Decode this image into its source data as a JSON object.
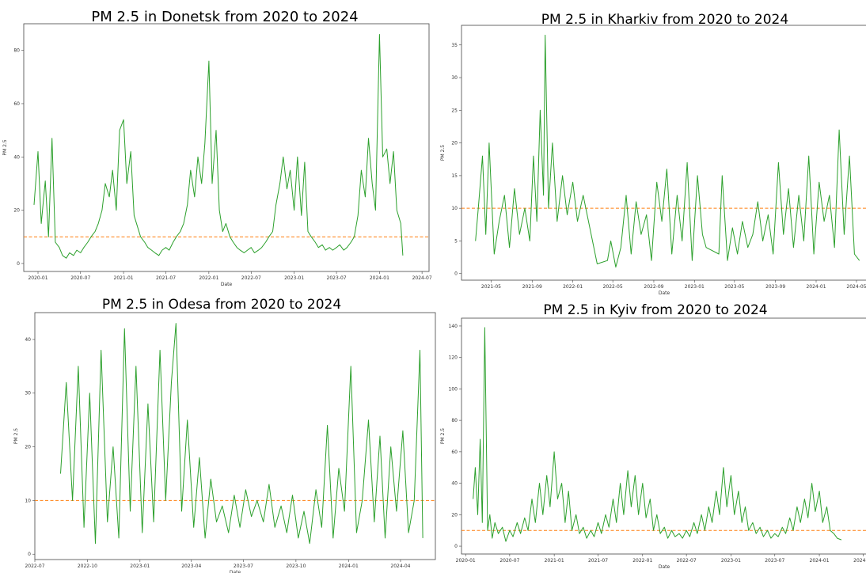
{
  "chart_data": [
    {
      "type": "line",
      "title": "PM 2.5 in Donetsk from 2020 to 2024",
      "xlabel": "Date",
      "ylabel": "PM 2.5",
      "threshold": 10,
      "xlim": [
        "2019-11-01",
        "2024-07-31"
      ],
      "ylim": [
        -3,
        90
      ],
      "x_ticks": [
        "2020-01",
        "2020-07",
        "2021-01",
        "2021-07",
        "2022-01",
        "2022-07",
        "2023-01",
        "2023-07",
        "2024-01",
        "2024-07"
      ],
      "y_ticks": [
        0,
        20,
        40,
        60,
        80
      ],
      "grid": false,
      "series": [
        {
          "color": "#2ca02c",
          "x": [
            "2019-12-15",
            "2020-01-01",
            "2020-01-15",
            "2020-02-01",
            "2020-02-15",
            "2020-03-01",
            "2020-03-15",
            "2020-04-01",
            "2020-04-15",
            "2020-05-01",
            "2020-05-15",
            "2020-06-01",
            "2020-06-15",
            "2020-07-01",
            "2020-07-15",
            "2020-08-01",
            "2020-08-15",
            "2020-09-01",
            "2020-09-15",
            "2020-10-01",
            "2020-10-15",
            "2020-11-01",
            "2020-11-15",
            "2020-12-01",
            "2020-12-15",
            "2021-01-01",
            "2021-01-15",
            "2021-02-01",
            "2021-02-15",
            "2021-03-01",
            "2021-03-15",
            "2021-04-01",
            "2021-04-15",
            "2021-05-01",
            "2021-05-15",
            "2021-06-01",
            "2021-06-15",
            "2021-07-01",
            "2021-07-15",
            "2021-08-01",
            "2021-08-15",
            "2021-09-01",
            "2021-09-15",
            "2021-10-01",
            "2021-10-15",
            "2021-11-01",
            "2021-11-15",
            "2021-12-01",
            "2021-12-15",
            "2022-01-01",
            "2022-01-15",
            "2022-02-01",
            "2022-02-15",
            "2022-03-01",
            "2022-03-15",
            "2022-04-01",
            "2022-04-15",
            "2022-05-01",
            "2022-05-15",
            "2022-06-01",
            "2022-06-15",
            "2022-07-01",
            "2022-07-15",
            "2022-08-01",
            "2022-08-15",
            "2022-09-01",
            "2022-09-15",
            "2022-10-01",
            "2022-10-15",
            "2022-11-01",
            "2022-11-15",
            "2022-12-01",
            "2022-12-15",
            "2023-01-01",
            "2023-01-15",
            "2023-02-01",
            "2023-02-15",
            "2023-03-01",
            "2023-03-15",
            "2023-04-01",
            "2023-04-15",
            "2023-05-01",
            "2023-05-15",
            "2023-06-01",
            "2023-06-15",
            "2023-07-01",
            "2023-07-15",
            "2023-08-01",
            "2023-08-15",
            "2023-09-01",
            "2023-09-15",
            "2023-10-01",
            "2023-10-15",
            "2023-11-01",
            "2023-11-15",
            "2023-12-01",
            "2023-12-15",
            "2024-01-01",
            "2024-01-15",
            "2024-02-01",
            "2024-02-15",
            "2024-03-01",
            "2024-03-15",
            "2024-04-01",
            "2024-04-10"
          ],
          "values": [
            22,
            42,
            15,
            31,
            10,
            47,
            8,
            6,
            3,
            2,
            4,
            3,
            5,
            4,
            6,
            8,
            10,
            12,
            15,
            20,
            30,
            25,
            35,
            20,
            50,
            54,
            30,
            42,
            18,
            14,
            10,
            8,
            6,
            5,
            4,
            3,
            5,
            6,
            5,
            8,
            10,
            12,
            15,
            22,
            35,
            25,
            40,
            30,
            45,
            76,
            30,
            50,
            20,
            12,
            15,
            10,
            8,
            6,
            5,
            4,
            5,
            6,
            4,
            5,
            6,
            8,
            10,
            12,
            22,
            30,
            40,
            28,
            35,
            20,
            40,
            18,
            38,
            12,
            10,
            8,
            6,
            7,
            5,
            6,
            5,
            6,
            7,
            5,
            6,
            8,
            10,
            18,
            35,
            25,
            47,
            30,
            20,
            86,
            40,
            43,
            30,
            42,
            20,
            15,
            3
          ]
        }
      ]
    },
    {
      "type": "line",
      "title": "PM 2.5 in Kharkiv from 2020 to 2024",
      "xlabel": "Date",
      "ylabel": "PM 2.5",
      "threshold": 10,
      "xlim": [
        "2021-02-01",
        "2024-06-01"
      ],
      "ylim": [
        -1,
        38
      ],
      "x_ticks": [
        "2021-05",
        "2021-09",
        "2022-01",
        "2022-05",
        "2022-09",
        "2023-01",
        "2023-05",
        "2023-09",
        "2024-01",
        "2024-05"
      ],
      "y_ticks": [
        0,
        5,
        10,
        15,
        20,
        25,
        30,
        35
      ],
      "grid": false,
      "series": [
        {
          "color": "#2ca02c",
          "x": [
            "2021-03-15",
            "2021-03-25",
            "2021-04-05",
            "2021-04-15",
            "2021-04-25",
            "2021-05-10",
            "2021-05-25",
            "2021-06-10",
            "2021-06-25",
            "2021-07-10",
            "2021-07-25",
            "2021-08-10",
            "2021-08-25",
            "2021-09-05",
            "2021-09-15",
            "2021-09-25",
            "2021-10-05",
            "2021-10-10",
            "2021-10-20",
            "2021-11-01",
            "2021-11-15",
            "2021-12-01",
            "2021-12-15",
            "2022-01-01",
            "2022-01-15",
            "2022-02-01",
            "2022-03-15",
            "2022-04-15",
            "2022-04-25",
            "2022-05-10",
            "2022-05-25",
            "2022-06-10",
            "2022-06-25",
            "2022-07-10",
            "2022-07-25",
            "2022-08-10",
            "2022-08-25",
            "2022-09-10",
            "2022-09-25",
            "2022-10-10",
            "2022-10-25",
            "2022-11-10",
            "2022-11-25",
            "2022-12-10",
            "2022-12-25",
            "2023-01-10",
            "2023-01-25",
            "2023-02-05",
            "2023-03-15",
            "2023-03-25",
            "2023-04-10",
            "2023-04-25",
            "2023-05-10",
            "2023-05-25",
            "2023-06-10",
            "2023-06-25",
            "2023-07-10",
            "2023-07-25",
            "2023-08-10",
            "2023-08-25",
            "2023-09-10",
            "2023-09-25",
            "2023-10-10",
            "2023-10-25",
            "2023-11-10",
            "2023-11-25",
            "2023-12-10",
            "2023-12-25",
            "2024-01-10",
            "2024-01-25",
            "2024-02-10",
            "2024-02-25",
            "2024-03-10",
            "2024-03-25",
            "2024-04-10",
            "2024-04-25",
            "2024-05-10"
          ],
          "values": [
            5,
            11,
            18,
            6,
            20,
            3,
            8,
            12,
            4,
            13,
            6,
            10,
            5,
            18,
            8,
            25,
            12,
            36.5,
            10,
            20,
            8,
            15,
            9,
            14,
            8,
            12,
            1.5,
            2,
            5,
            1,
            4,
            12,
            3,
            11,
            6,
            9,
            2,
            14,
            8,
            16,
            3,
            12,
            5,
            17,
            2,
            15,
            6,
            4,
            3,
            15,
            2,
            7,
            3,
            8,
            4,
            6,
            11,
            5,
            9,
            3,
            17,
            6,
            13,
            4,
            12,
            5,
            18,
            3,
            14,
            8,
            12,
            4,
            22,
            6,
            18,
            3,
            2
          ]
        }
      ]
    },
    {
      "type": "line",
      "title": "PM 2.5 in Odesa from 2020 to 2024",
      "xlabel": "Date",
      "ylabel": "PM 2.5",
      "threshold": 10,
      "xlim": [
        "2022-07-01",
        "2024-06-01"
      ],
      "ylim": [
        -1,
        45
      ],
      "x_ticks": [
        "2022-07",
        "2022-10",
        "2023-01",
        "2023-04",
        "2023-07",
        "2023-10",
        "2024-01",
        "2024-04"
      ],
      "y_ticks": [
        0,
        10,
        20,
        30,
        40
      ],
      "grid": false,
      "series": [
        {
          "color": "#2ca02c",
          "x": [
            "2022-08-15",
            "2022-08-25",
            "2022-09-05",
            "2022-09-15",
            "2022-09-25",
            "2022-10-05",
            "2022-10-15",
            "2022-10-25",
            "2022-11-05",
            "2022-11-15",
            "2022-11-25",
            "2022-12-05",
            "2022-12-15",
            "2022-12-25",
            "2023-01-05",
            "2023-01-15",
            "2023-01-25",
            "2023-02-05",
            "2023-02-15",
            "2023-02-25",
            "2023-03-05",
            "2023-03-15",
            "2023-03-25",
            "2023-04-05",
            "2023-04-15",
            "2023-04-25",
            "2023-05-05",
            "2023-05-15",
            "2023-05-25",
            "2023-06-05",
            "2023-06-15",
            "2023-06-25",
            "2023-07-05",
            "2023-07-15",
            "2023-07-25",
            "2023-08-05",
            "2023-08-15",
            "2023-08-25",
            "2023-09-05",
            "2023-09-15",
            "2023-09-25",
            "2023-10-05",
            "2023-10-15",
            "2023-10-25",
            "2023-11-05",
            "2023-11-15",
            "2023-11-25",
            "2023-12-05",
            "2023-12-15",
            "2023-12-25",
            "2024-01-05",
            "2024-01-15",
            "2024-01-25",
            "2024-02-05",
            "2024-02-15",
            "2024-02-25",
            "2024-03-05",
            "2024-03-15",
            "2024-03-25",
            "2024-04-05",
            "2024-04-15",
            "2024-04-25",
            "2024-05-05",
            "2024-05-10"
          ],
          "values": [
            15,
            32,
            10,
            35,
            5,
            30,
            2,
            38,
            6,
            20,
            3,
            42,
            8,
            35,
            4,
            28,
            6,
            38,
            10,
            32,
            43,
            8,
            25,
            5,
            18,
            3,
            14,
            6,
            9,
            4,
            11,
            5,
            12,
            7,
            10,
            6,
            13,
            5,
            9,
            4,
            11,
            3,
            8,
            2,
            12,
            5,
            24,
            3,
            16,
            8,
            35,
            4,
            10,
            25,
            6,
            22,
            3,
            20,
            8,
            23,
            4,
            10,
            38,
            3
          ]
        }
      ]
    },
    {
      "type": "line",
      "title": "PM 2.5 in Kyiv from 2020 to 2024",
      "xlabel": "Date",
      "ylabel": "PM 2.5",
      "threshold": 10,
      "xlim": [
        "2019-12-15",
        "2024-07-15"
      ],
      "ylim": [
        -5,
        145
      ],
      "x_ticks": [
        "2020-01",
        "2020-07",
        "2021-01",
        "2021-07",
        "2022-01",
        "2022-07",
        "2023-01",
        "2023-07",
        "2024-01",
        "2024-07"
      ],
      "y_ticks": [
        0,
        20,
        40,
        60,
        80,
        100,
        120,
        140
      ],
      "grid": false,
      "series": [
        {
          "color": "#2ca02c",
          "x": [
            "2020-02-01",
            "2020-02-10",
            "2020-02-20",
            "2020-03-01",
            "2020-03-10",
            "2020-03-20",
            "2020-04-01",
            "2020-04-10",
            "2020-04-20",
            "2020-05-01",
            "2020-05-15",
            "2020-06-01",
            "2020-06-15",
            "2020-07-01",
            "2020-07-15",
            "2020-08-01",
            "2020-08-15",
            "2020-09-01",
            "2020-09-15",
            "2020-10-01",
            "2020-10-15",
            "2020-11-01",
            "2020-11-15",
            "2020-12-01",
            "2020-12-15",
            "2021-01-01",
            "2021-01-15",
            "2021-02-01",
            "2021-02-15",
            "2021-03-01",
            "2021-03-15",
            "2021-04-01",
            "2021-04-15",
            "2021-05-01",
            "2021-05-15",
            "2021-06-01",
            "2021-06-15",
            "2021-07-01",
            "2021-07-15",
            "2021-08-01",
            "2021-08-15",
            "2021-09-01",
            "2021-09-15",
            "2021-10-01",
            "2021-10-15",
            "2021-11-01",
            "2021-11-15",
            "2021-12-01",
            "2021-12-15",
            "2022-01-01",
            "2022-01-15",
            "2022-02-01",
            "2022-02-15",
            "2022-03-01",
            "2022-03-15",
            "2022-04-01",
            "2022-04-15",
            "2022-05-01",
            "2022-05-15",
            "2022-06-01",
            "2022-06-15",
            "2022-07-01",
            "2022-07-15",
            "2022-08-01",
            "2022-08-15",
            "2022-09-01",
            "2022-09-15",
            "2022-10-01",
            "2022-10-15",
            "2022-11-01",
            "2022-11-15",
            "2022-12-01",
            "2022-12-15",
            "2023-01-01",
            "2023-01-15",
            "2023-02-01",
            "2023-02-15",
            "2023-03-01",
            "2023-03-15",
            "2023-04-01",
            "2023-04-15",
            "2023-05-01",
            "2023-05-15",
            "2023-06-01",
            "2023-06-15",
            "2023-07-01",
            "2023-07-15",
            "2023-08-01",
            "2023-08-15",
            "2023-09-01",
            "2023-09-15",
            "2023-10-01",
            "2023-10-15",
            "2023-11-01",
            "2023-11-15",
            "2023-12-01",
            "2023-12-15",
            "2024-01-01",
            "2024-01-15",
            "2024-02-01",
            "2024-02-15",
            "2024-03-01",
            "2024-03-15",
            "2024-04-01"
          ],
          "values": [
            30,
            50,
            20,
            68,
            15,
            139,
            10,
            20,
            5,
            15,
            8,
            12,
            3,
            10,
            6,
            15,
            8,
            18,
            10,
            30,
            15,
            40,
            20,
            45,
            25,
            60,
            30,
            40,
            15,
            35,
            10,
            20,
            8,
            12,
            5,
            10,
            6,
            15,
            8,
            20,
            12,
            30,
            15,
            40,
            20,
            48,
            25,
            45,
            20,
            40,
            18,
            30,
            10,
            20,
            8,
            12,
            5,
            10,
            6,
            8,
            5,
            10,
            6,
            15,
            8,
            20,
            10,
            25,
            15,
            35,
            20,
            50,
            25,
            45,
            20,
            35,
            15,
            25,
            10,
            15,
            8,
            12,
            6,
            10,
            5,
            8,
            6,
            12,
            8,
            18,
            10,
            25,
            15,
            30,
            18,
            40,
            22,
            35,
            15,
            25,
            10,
            8,
            5,
            4
          ]
        }
      ]
    }
  ]
}
